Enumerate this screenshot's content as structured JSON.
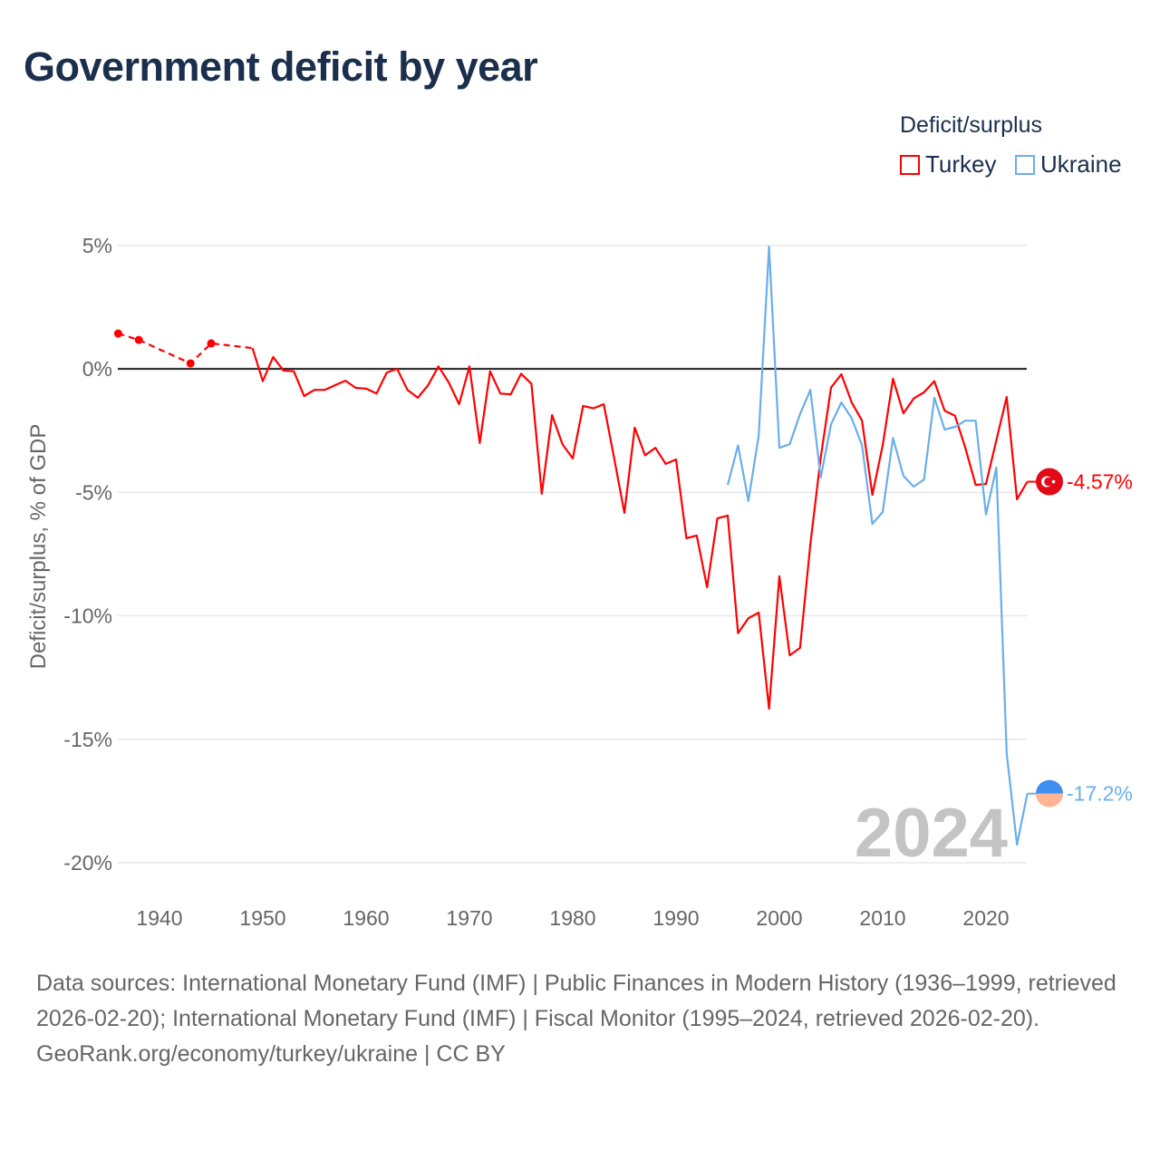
{
  "title": "Government deficit by year",
  "legend": {
    "title": "Deficit/surplus",
    "items": [
      {
        "name": "Turkey",
        "color": "#ff0000"
      },
      {
        "name": "Ukraine",
        "color": "#6aaeea"
      }
    ]
  },
  "sources": "Data sources: International Monetary Fund (IMF) | Public Finances in Modern History (1936–1999, retrieved 2026-02-20); International Monetary Fund (IMF) | Fiscal Monitor (1995–2024, retrieved 2026-02-20).",
  "credit": "GeoRank.org/economy/turkey/ukraine | CC BY",
  "chart_data": {
    "type": "line",
    "title": "Government deficit by year",
    "ylabel": "Deficit/surplus, % of GDP",
    "xlabel": "",
    "xlim": [
      1936,
      2024
    ],
    "ylim": [
      -20,
      5
    ],
    "x_ticks": [
      "1940",
      "1950",
      "1960",
      "1970",
      "1980",
      "1990",
      "2000",
      "2010",
      "2020"
    ],
    "y_ticks": [
      {
        "v": 5,
        "label": "5%"
      },
      {
        "v": 0,
        "label": "0%"
      },
      {
        "v": -5,
        "label": "-5%"
      },
      {
        "v": -10,
        "label": "-10%"
      },
      {
        "v": -15,
        "label": "-15%"
      },
      {
        "v": -20,
        "label": "-20%"
      }
    ],
    "year_watermark": "2024",
    "series": [
      {
        "name": "Turkey",
        "color": "#ff0000",
        "end_label": "-4.57%",
        "flag_icon": "turkey-flag-icon",
        "sparse_points": [
          [
            1936,
            1.43
          ],
          [
            1938,
            1.17
          ],
          [
            1943,
            0.22
          ],
          [
            1945,
            1.03
          ],
          [
            1949,
            0.84
          ]
        ],
        "points": [
          [
            1949,
            0.84
          ],
          [
            1950,
            -0.5
          ],
          [
            1951,
            0.48
          ],
          [
            1952,
            -0.07
          ],
          [
            1953,
            -0.1
          ],
          [
            1954,
            -1.1
          ],
          [
            1955,
            -0.85
          ],
          [
            1956,
            -0.85
          ],
          [
            1957,
            -0.66
          ],
          [
            1958,
            -0.48
          ],
          [
            1959,
            -0.77
          ],
          [
            1960,
            -0.8
          ],
          [
            1961,
            -1.0
          ],
          [
            1962,
            -0.15
          ],
          [
            1963,
            0
          ],
          [
            1964,
            -0.85
          ],
          [
            1965,
            -1.17
          ],
          [
            1966,
            -0.66
          ],
          [
            1967,
            0.1
          ],
          [
            1968,
            -0.55
          ],
          [
            1969,
            -1.43
          ],
          [
            1970,
            0.1
          ],
          [
            1971,
            -3.0
          ],
          [
            1972,
            -0.1
          ],
          [
            1973,
            -1.0
          ],
          [
            1974,
            -1.03
          ],
          [
            1975,
            -0.2
          ],
          [
            1976,
            -0.6
          ],
          [
            1977,
            -5.06
          ],
          [
            1978,
            -1.87
          ],
          [
            1979,
            -3.05
          ],
          [
            1980,
            -3.63
          ],
          [
            1981,
            -1.5
          ],
          [
            1982,
            -1.6
          ],
          [
            1983,
            -1.43
          ],
          [
            1984,
            -3.6
          ],
          [
            1985,
            -5.83
          ],
          [
            1986,
            -2.38
          ],
          [
            1987,
            -3.5
          ],
          [
            1988,
            -3.2
          ],
          [
            1989,
            -3.85
          ],
          [
            1990,
            -3.67
          ],
          [
            1991,
            -6.86
          ],
          [
            1992,
            -6.75
          ],
          [
            1993,
            -8.84
          ],
          [
            1994,
            -6.05
          ],
          [
            1995,
            -5.94
          ],
          [
            1996,
            -10.7
          ],
          [
            1997,
            -10.1
          ],
          [
            1998,
            -9.87
          ],
          [
            1999,
            -13.76
          ],
          [
            2000,
            -8.4
          ],
          [
            2001,
            -11.6
          ],
          [
            2002,
            -11.3
          ],
          [
            2003,
            -7.1
          ],
          [
            2004,
            -3.6
          ],
          [
            2005,
            -0.76
          ],
          [
            2006,
            -0.22
          ],
          [
            2007,
            -1.36
          ],
          [
            2008,
            -2.1
          ],
          [
            2009,
            -5.1
          ],
          [
            2010,
            -3.1
          ],
          [
            2011,
            -0.4
          ],
          [
            2012,
            -1.8
          ],
          [
            2013,
            -1.2
          ],
          [
            2014,
            -0.95
          ],
          [
            2015,
            -0.5
          ],
          [
            2016,
            -1.7
          ],
          [
            2017,
            -1.9
          ],
          [
            2018,
            -3.2
          ],
          [
            2019,
            -4.7
          ],
          [
            2020,
            -4.66
          ],
          [
            2021,
            -2.9
          ],
          [
            2022,
            -1.14
          ],
          [
            2023,
            -5.28
          ],
          [
            2024,
            -4.57
          ]
        ]
      },
      {
        "name": "Ukraine",
        "color": "#6aaeea",
        "end_label": "-17.2%",
        "flag_icon": "ukraine-flag-icon",
        "points": [
          [
            1995,
            -4.7
          ],
          [
            1996,
            -3.1
          ],
          [
            1997,
            -5.35
          ],
          [
            1998,
            -2.7
          ],
          [
            1999,
            4.95
          ],
          [
            2000,
            -3.2
          ],
          [
            2001,
            -3.05
          ],
          [
            2002,
            -1.83
          ],
          [
            2003,
            -0.85
          ],
          [
            2004,
            -4.4
          ],
          [
            2005,
            -2.25
          ],
          [
            2006,
            -1.36
          ],
          [
            2007,
            -2.0
          ],
          [
            2008,
            -3.1
          ],
          [
            2009,
            -6.28
          ],
          [
            2010,
            -5.8
          ],
          [
            2011,
            -2.8
          ],
          [
            2012,
            -4.33
          ],
          [
            2013,
            -4.77
          ],
          [
            2014,
            -4.48
          ],
          [
            2015,
            -1.17
          ],
          [
            2016,
            -2.46
          ],
          [
            2017,
            -2.35
          ],
          [
            2018,
            -2.1
          ],
          [
            2019,
            -2.1
          ],
          [
            2020,
            -5.9
          ],
          [
            2021,
            -4.0
          ],
          [
            2022,
            -15.56
          ],
          [
            2023,
            -19.27
          ],
          [
            2024,
            -17.2
          ]
        ]
      }
    ]
  }
}
